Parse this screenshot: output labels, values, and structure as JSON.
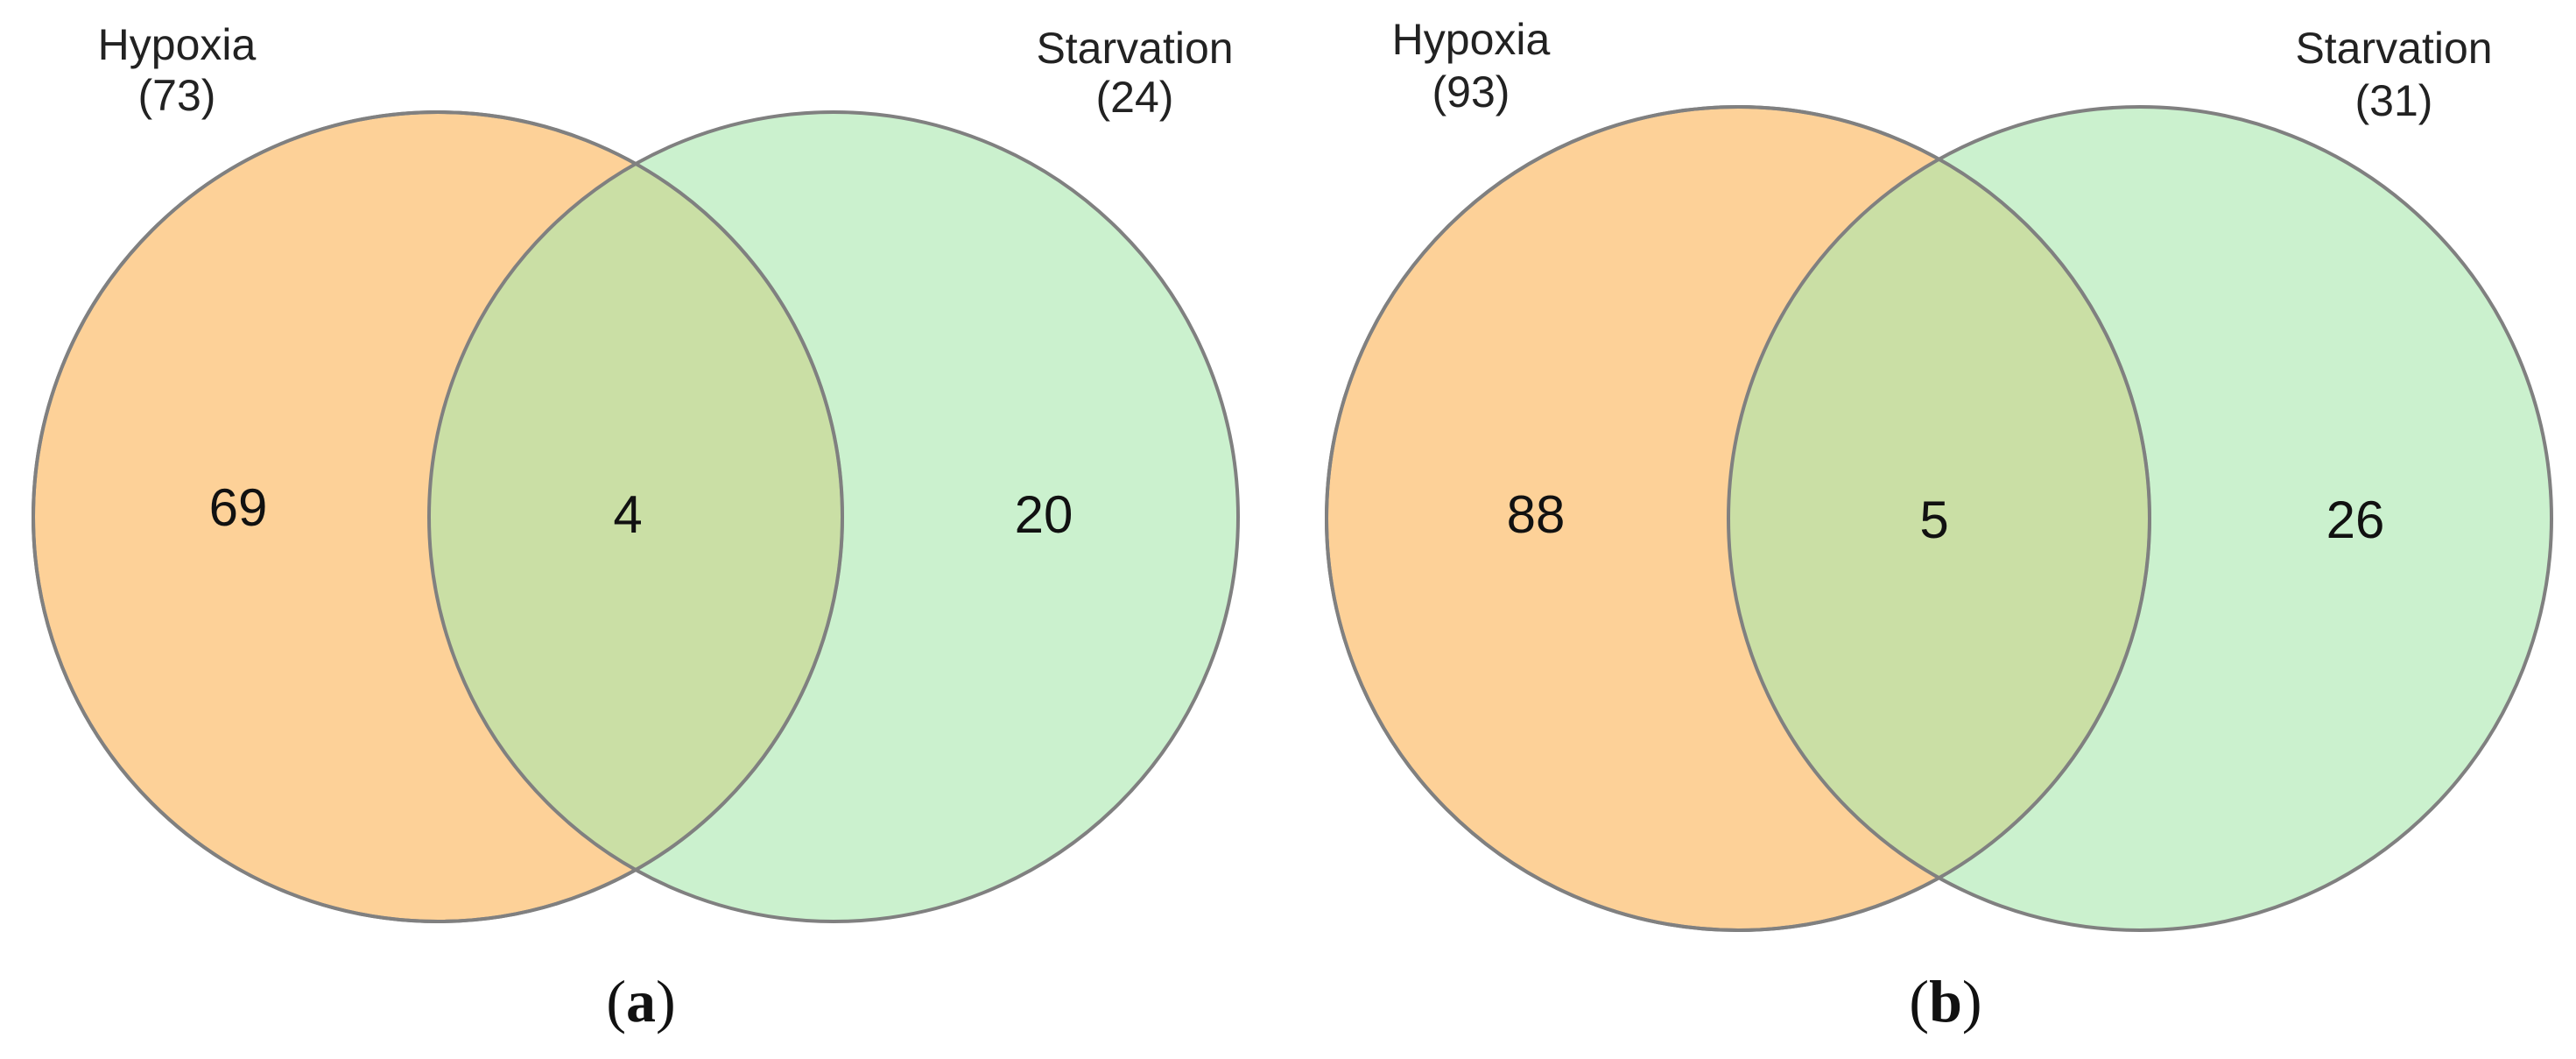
{
  "colors": {
    "hypoxia_fill": "#fcc276",
    "starvation_fill": "#a9e8ad",
    "outline": "#808080"
  },
  "panels": [
    {
      "id": "a",
      "label_open": "(",
      "label_letter": "a",
      "label_close": ")",
      "sets": [
        {
          "name": "Hypoxia",
          "total": "(73)"
        },
        {
          "name": "Starvation",
          "total": "(24)"
        }
      ],
      "counts": {
        "left_only": "69",
        "intersection": "4",
        "right_only": "20"
      }
    },
    {
      "id": "b",
      "label_open": "(",
      "label_letter": "b",
      "label_close": ")",
      "sets": [
        {
          "name": "Hypoxia",
          "total": "(93)"
        },
        {
          "name": "Starvation",
          "total": "(31)"
        }
      ],
      "counts": {
        "left_only": "88",
        "intersection": "5",
        "right_only": "26"
      }
    }
  ]
}
